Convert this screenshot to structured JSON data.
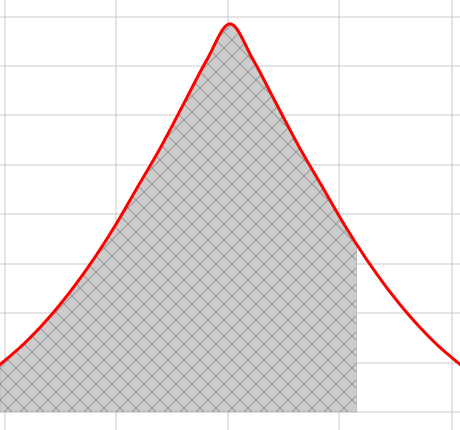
{
  "chart_data": {
    "type": "area",
    "title": "",
    "xlabel": "",
    "ylabel": "",
    "grid": true,
    "xlim": [
      -1.0,
      1.0
    ],
    "ylim": [
      0.0,
      1.0
    ],
    "series": [
      {
        "x": [
          -1.0,
          -0.9,
          -0.8,
          -0.7,
          -0.6,
          -0.5,
          -0.4,
          -0.3,
          -0.2,
          -0.1,
          0.0,
          0.1,
          0.2,
          0.3,
          0.4,
          0.5,
          0.6,
          0.7,
          0.8,
          0.9,
          1.0
        ],
        "y": [
          0.12,
          0.17,
          0.23,
          0.3,
          0.38,
          0.47,
          0.57,
          0.67,
          0.78,
          0.89,
          0.98,
          0.89,
          0.78,
          0.67,
          0.57,
          0.47,
          0.38,
          0.3,
          0.23,
          0.17,
          0.12
        ]
      }
    ],
    "shaded_region": {
      "x_from": -1.0,
      "x_to": 0.55,
      "fill_color": "#cccccc",
      "hatch": "crosshatch"
    },
    "colors": {
      "curve": "#ff0000",
      "grid": "#c8c8c8",
      "hatch_line": "#999999"
    }
  }
}
